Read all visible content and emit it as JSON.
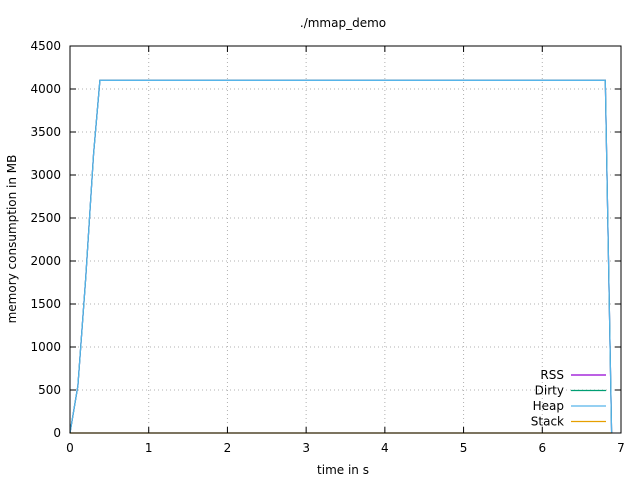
{
  "chart_data": {
    "type": "line",
    "title": "./mmap_demo",
    "xlabel": "time in s",
    "ylabel": "memory consumption in MB",
    "xlim": [
      0,
      7
    ],
    "ylim": [
      0,
      4500
    ],
    "xticks": [
      0,
      1,
      2,
      3,
      4,
      5,
      6,
      7
    ],
    "yticks": [
      0,
      500,
      1000,
      1500,
      2000,
      2500,
      3000,
      3500,
      4000,
      4500
    ],
    "grid": true,
    "legend_position": "bottom-right",
    "series": [
      {
        "name": "RSS",
        "color": "#9400d3",
        "x": [
          0,
          0.1,
          0.2,
          0.3,
          0.38,
          1,
          2,
          3,
          4,
          5,
          6,
          6.8,
          6.88
        ],
        "y": [
          0,
          550,
          1800,
          3250,
          4100,
          4100,
          4100,
          4100,
          4100,
          4100,
          4100,
          4100,
          0
        ]
      },
      {
        "name": "Dirty",
        "color": "#009e73",
        "x": [
          0,
          0.1,
          0.2,
          0.3,
          0.38,
          1,
          2,
          3,
          4,
          5,
          6,
          6.8,
          6.88
        ],
        "y": [
          0,
          550,
          1800,
          3250,
          4100,
          4100,
          4100,
          4100,
          4100,
          4100,
          4100,
          4100,
          0
        ]
      },
      {
        "name": "Heap",
        "color": "#56b4e9",
        "x": [
          0,
          0.1,
          0.2,
          0.3,
          0.38,
          1,
          2,
          3,
          4,
          5,
          6,
          6.8,
          6.88
        ],
        "y": [
          0,
          550,
          1800,
          3250,
          4100,
          4100,
          4100,
          4100,
          4100,
          4100,
          4100,
          4100,
          0
        ]
      },
      {
        "name": "Stack",
        "color": "#e69f00",
        "x": [
          0,
          1,
          2,
          3,
          4,
          5,
          6,
          6.88
        ],
        "y": [
          0,
          0,
          0,
          0,
          0,
          0,
          0,
          0
        ]
      }
    ]
  }
}
